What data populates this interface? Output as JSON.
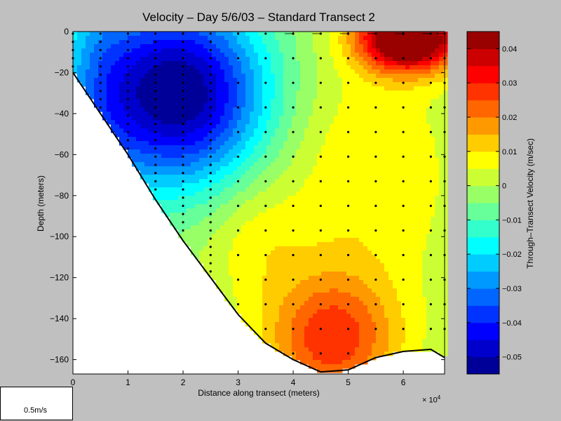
{
  "chart_data": [
    {
      "type": "contour",
      "title": "Velocity – Day 5/6/03 – Standard Transect 2",
      "xlabel": "Distance along transect (meters)",
      "ylabel": "Depth (meters)",
      "x_multiplier": "10",
      "x_multiplier_exp": "4",
      "xlim": [
        0,
        6.75
      ],
      "ylim": [
        -167,
        0
      ],
      "xticks": [
        0,
        1,
        2,
        3,
        4,
        5,
        6
      ],
      "yticks": [
        0,
        -20,
        -40,
        -60,
        -80,
        -100,
        -120,
        -140,
        -160
      ],
      "bathymetry": {
        "x": [
          0,
          0.5,
          1,
          1.5,
          2,
          2.5,
          3,
          3.5,
          4,
          4.5,
          5,
          5.5,
          6,
          6.5,
          6.75
        ],
        "depth": [
          -20,
          -40,
          -60,
          -82,
          -102,
          -120,
          -138,
          -152,
          -160,
          -166,
          -165,
          -159,
          -156,
          -155,
          -159
        ]
      },
      "velocity_extremes": [
        {
          "x": 1.9,
          "depth": -30,
          "value": -0.05
        },
        {
          "x": 6.0,
          "depth": -5,
          "value": 0.045
        },
        {
          "x": 4.6,
          "depth": -150,
          "value": 0.02
        },
        {
          "x": 4.2,
          "depth": -45,
          "value": 0.0
        }
      ],
      "profile_x": [
        0,
        0.5,
        1,
        1.5,
        2,
        2.5,
        3,
        3.5,
        4,
        4.5,
        5,
        5.5,
        6,
        6.5,
        6.75
      ],
      "scale_vector_label": "0.5m/s"
    },
    {
      "type": "colorbar",
      "label": "Through–Transect Velocity (m/sec)",
      "vmin": -0.055,
      "vmax": 0.045,
      "levels": 20,
      "ticks": [
        0.04,
        0.03,
        0.02,
        0.01,
        0,
        -0.01,
        -0.02,
        -0.03,
        -0.04,
        -0.05
      ],
      "tick_labels": [
        "0.04",
        "0.03",
        "0.02",
        "0.01",
        "0",
        "−0.01",
        "−0.02",
        "−0.03",
        "−0.04",
        "−0.05"
      ]
    }
  ]
}
